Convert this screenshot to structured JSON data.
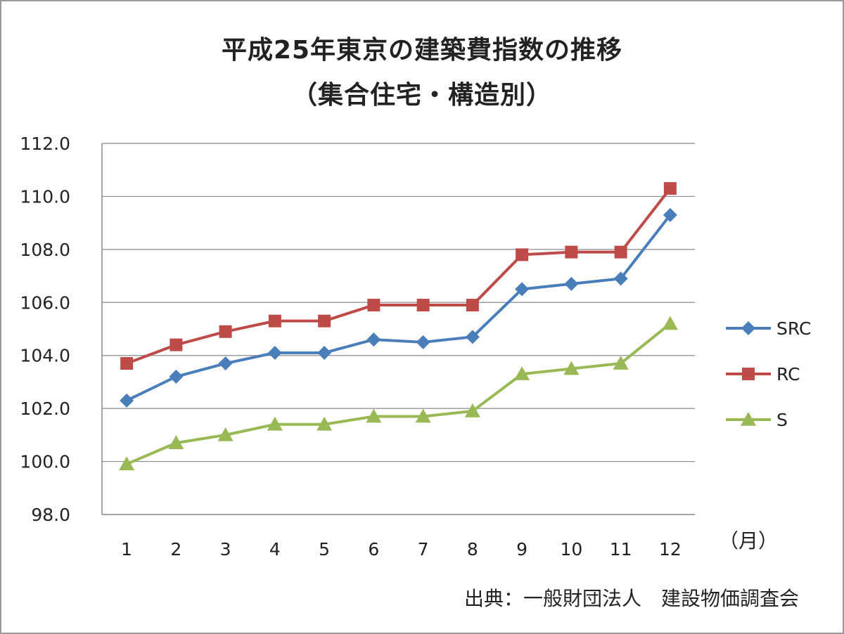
{
  "chart_data": {
    "type": "line",
    "title": "平成25年東京の建築費指数の推移",
    "subtitle": "（集合住宅・構造別）",
    "categories": [
      "1",
      "2",
      "3",
      "4",
      "5",
      "6",
      "7",
      "8",
      "9",
      "10",
      "11",
      "12"
    ],
    "x_unit_label": "（月）",
    "ylim": [
      98.0,
      112.0
    ],
    "y_ticks": [
      "98.0",
      "100.0",
      "102.0",
      "104.0",
      "106.0",
      "108.0",
      "110.0",
      "112.0"
    ],
    "grid": true,
    "legend_position": "right",
    "series": [
      {
        "name": "SRC",
        "marker": "diamond",
        "color": "#4a7ebb",
        "values": [
          102.3,
          103.2,
          103.7,
          104.1,
          104.1,
          104.6,
          104.5,
          104.7,
          106.5,
          106.7,
          106.9,
          109.3
        ]
      },
      {
        "name": "RC",
        "marker": "square",
        "color": "#be4b48",
        "values": [
          103.7,
          104.4,
          104.9,
          105.3,
          105.3,
          105.9,
          105.9,
          105.9,
          107.8,
          107.9,
          107.9,
          110.3
        ]
      },
      {
        "name": "S",
        "marker": "triangle",
        "color": "#98b954",
        "values": [
          99.9,
          100.7,
          101.0,
          101.4,
          101.4,
          101.7,
          101.7,
          101.9,
          103.3,
          103.5,
          103.7,
          105.2
        ]
      }
    ],
    "source": "出典：一般財団法人　建設物価調査会"
  }
}
